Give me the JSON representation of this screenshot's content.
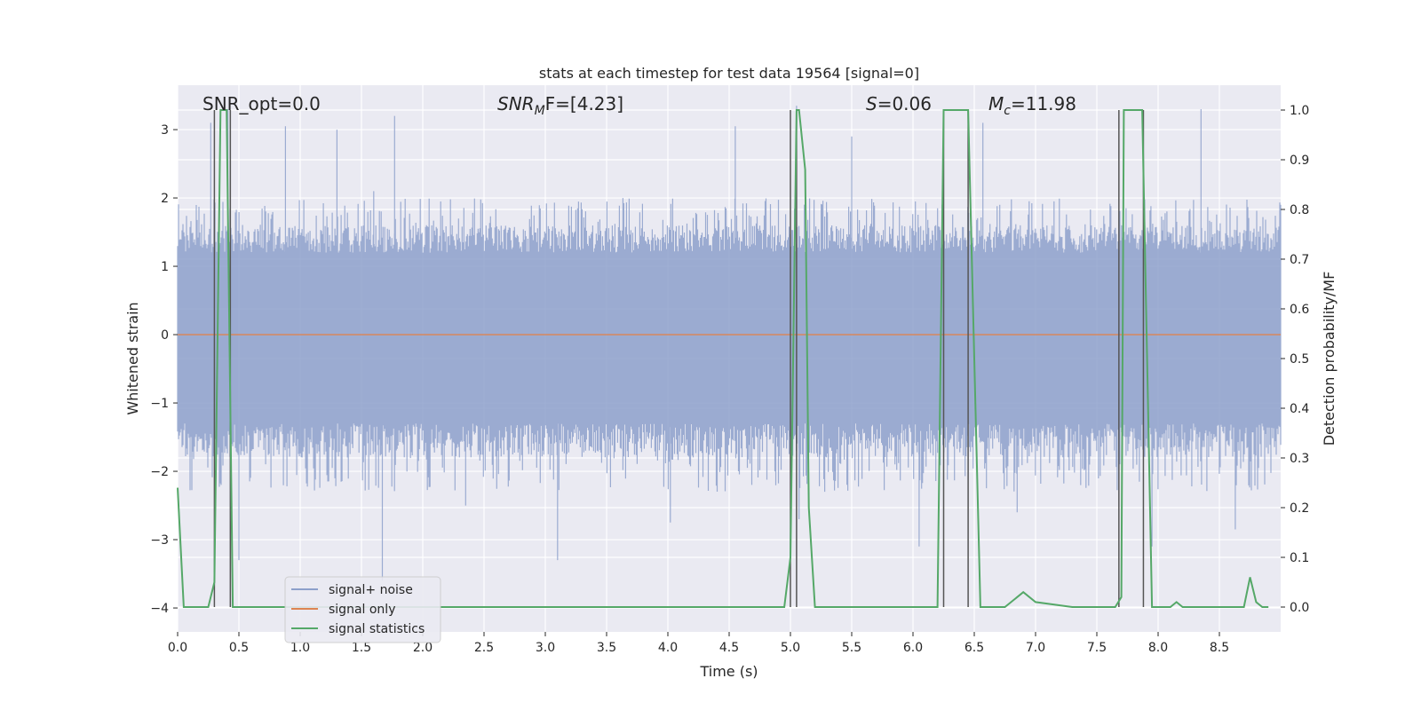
{
  "chart_data": {
    "type": "line",
    "title": "stats at each timestep for test data 19564 [signal=0]",
    "xlabel": "Time (s)",
    "ylabel_left": "Whitened strain",
    "ylabel_right": "Detection probability/MF",
    "xlim": [
      0.0,
      9.0
    ],
    "ylim_left": [
      -4.35,
      3.65
    ],
    "ylim_right": [
      -0.05,
      1.05
    ],
    "xticks": [
      0.0,
      0.5,
      1.0,
      1.5,
      2.0,
      2.5,
      3.0,
      3.5,
      4.0,
      4.5,
      5.0,
      5.5,
      6.0,
      6.5,
      7.0,
      7.5,
      8.0,
      8.5
    ],
    "xtick_labels": [
      "0.0",
      "0.5",
      "1.0",
      "1.5",
      "2.0",
      "2.5",
      "3.0",
      "3.5",
      "4.0",
      "4.5",
      "5.0",
      "5.5",
      "6.0",
      "6.5",
      "7.0",
      "7.5",
      "8.0",
      "8.5"
    ],
    "yticks_left": [
      3,
      2,
      1,
      0,
      -1,
      -2,
      -3,
      -4
    ],
    "ytick_labels_left": [
      "3",
      "2",
      "1",
      "0",
      "−1",
      "−2",
      "−3",
      "−4"
    ],
    "yticks_right": [
      1.0,
      0.9,
      0.8,
      0.7,
      0.6,
      0.5,
      0.4,
      0.3,
      0.2,
      0.1,
      0.0
    ],
    "ytick_labels_right": [
      "1.0",
      "0.9",
      "0.8",
      "0.7",
      "0.6",
      "0.5",
      "0.4",
      "0.3",
      "0.2",
      "0.1",
      "0.0"
    ],
    "grid": true,
    "annotations": {
      "snr_opt": "SNR_opt=0.0",
      "snr_mf_var": "SNR",
      "snr_mf_sub": "M",
      "snr_mf_rest": "F=[4.23]",
      "s_var": "S",
      "s_rest": "=0.06",
      "mc_var": "M",
      "mc_sub": "c",
      "mc_rest": "=11.98"
    },
    "legend": {
      "placement": "lower-left",
      "entries": [
        "signal+ noise",
        "signal only",
        "signal statistics"
      ]
    },
    "colors": {
      "noise": "#8da0cb",
      "signal": "#dd8452",
      "stats": "#55a868",
      "vlines": "#555555",
      "background": "#eaeaf2",
      "grid": "#ffffff"
    },
    "series": [
      {
        "name": "signal+ noise",
        "axis": "left",
        "kind": "noise",
        "envelope_pos_typical": [
          1.2,
          2.0
        ],
        "envelope_neg_typical": [
          -1.3,
          -2.3
        ],
        "spikes": [
          {
            "x": 0.27,
            "y": 3.1
          },
          {
            "x": 0.41,
            "y": 3.3
          },
          {
            "x": 0.5,
            "y": -3.3
          },
          {
            "x": 0.88,
            "y": 3.05
          },
          {
            "x": 1.3,
            "y": 3.0
          },
          {
            "x": 1.6,
            "y": 2.1
          },
          {
            "x": 1.67,
            "y": -3.6
          },
          {
            "x": 1.77,
            "y": 3.2
          },
          {
            "x": 3.1,
            "y": -3.3
          },
          {
            "x": 4.55,
            "y": 3.05
          },
          {
            "x": 5.05,
            "y": 3.35
          },
          {
            "x": 5.07,
            "y": -2.7
          },
          {
            "x": 6.05,
            "y": -3.1
          },
          {
            "x": 6.57,
            "y": 3.1
          },
          {
            "x": 8.35,
            "y": 3.3
          },
          {
            "x": 8.63,
            "y": -2.85
          },
          {
            "x": 7.95,
            "y": -3.1
          },
          {
            "x": 2.35,
            "y": -2.5
          },
          {
            "x": 4.02,
            "y": -2.75
          },
          {
            "x": 6.85,
            "y": -2.6
          },
          {
            "x": 5.5,
            "y": 2.9
          }
        ]
      },
      {
        "name": "signal only",
        "axis": "left",
        "x": [
          0.0,
          9.0
        ],
        "y": [
          0.0,
          0.0
        ]
      },
      {
        "name": "signal statistics",
        "axis": "right",
        "x": [
          0.0,
          0.05,
          0.1,
          0.2,
          0.25,
          0.3,
          0.35,
          0.4,
          0.45,
          0.5,
          0.55,
          0.6,
          1.0,
          2.0,
          3.0,
          4.0,
          4.95,
          5.0,
          5.05,
          5.07,
          5.12,
          5.15,
          5.2,
          5.3,
          6.0,
          6.2,
          6.25,
          6.3,
          6.4,
          6.45,
          6.55,
          6.6,
          6.75,
          6.85,
          6.9,
          7.0,
          7.3,
          7.65,
          7.7,
          7.72,
          7.8,
          7.87,
          7.95,
          8.0,
          8.1,
          8.15,
          8.2,
          8.3,
          8.5,
          8.7,
          8.75,
          8.8,
          8.85,
          8.9
        ],
        "y": [
          0.24,
          0.0,
          0.0,
          0.0,
          0.0,
          0.05,
          1.0,
          1.0,
          0.0,
          0.0,
          0.0,
          0.0,
          0.0,
          0.0,
          0.0,
          0.0,
          0.0,
          0.1,
          1.0,
          1.0,
          0.88,
          0.2,
          0.0,
          0.0,
          0.0,
          0.0,
          1.0,
          1.0,
          1.0,
          1.0,
          0.0,
          0.0,
          0.0,
          0.02,
          0.03,
          0.01,
          0.0,
          0.0,
          0.02,
          1.0,
          1.0,
          1.0,
          0.0,
          0.0,
          0.0,
          0.01,
          0.0,
          0.0,
          0.0,
          0.0,
          0.06,
          0.01,
          0.0,
          0.0
        ]
      }
    ],
    "vlines": [
      0.3,
      0.43,
      5.0,
      5.05,
      6.25,
      6.45,
      7.68,
      7.88
    ]
  }
}
